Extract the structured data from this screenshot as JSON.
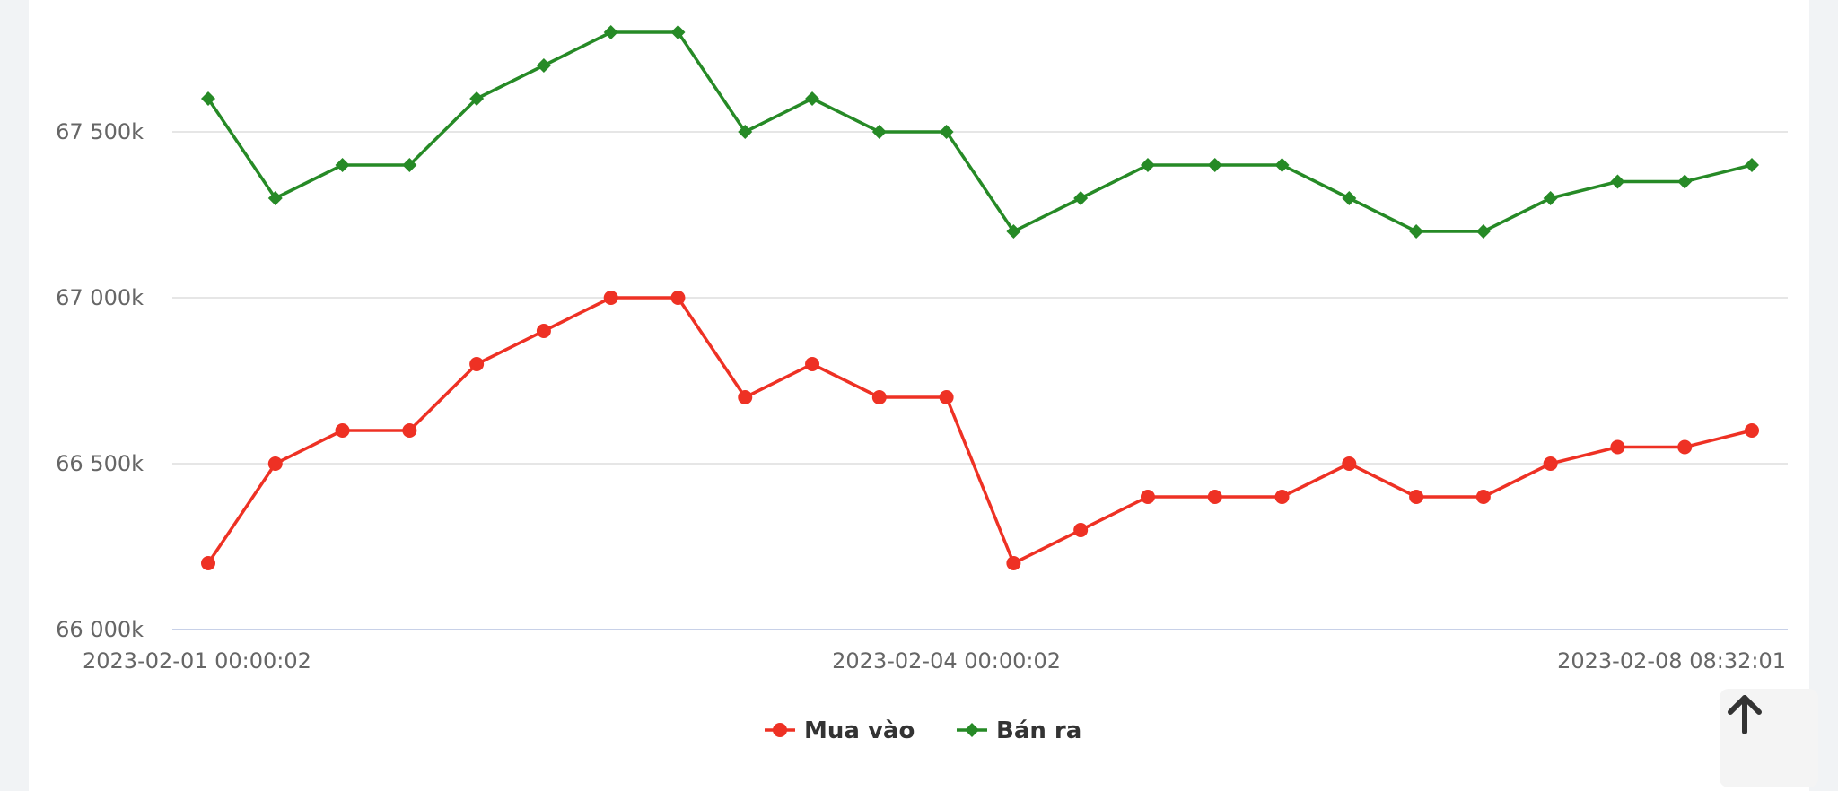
{
  "chart_data": {
    "type": "line",
    "title": "",
    "xlabel": "",
    "ylabel": "",
    "ylim": [
      66000,
      68000
    ],
    "y_ticks": [
      {
        "value": 66000,
        "label": "66 000k"
      },
      {
        "value": 66500,
        "label": "66 500k"
      },
      {
        "value": 67000,
        "label": "67 000k"
      },
      {
        "value": 67500,
        "label": "67 500k"
      }
    ],
    "x_tick_labels": [
      {
        "index": 0,
        "label": "2023-02-01 00:00:02"
      },
      {
        "index": 11,
        "label": "2023-02-04 00:00:02"
      },
      {
        "index": 23,
        "label": "2023-02-08 08:32:01"
      }
    ],
    "grid": true,
    "legend_position": "bottom",
    "series": [
      {
        "name": "Mua vào",
        "color": "#ee3124",
        "marker": "circle",
        "values": [
          66200,
          66500,
          66600,
          66600,
          66800,
          66900,
          67000,
          67000,
          66700,
          66800,
          66700,
          66700,
          66200,
          66300,
          66400,
          66400,
          66400,
          66500,
          66400,
          66400,
          66500,
          66550,
          66550,
          66600
        ]
      },
      {
        "name": "Bán ra",
        "color": "#268a26",
        "marker": "diamond",
        "values": [
          67600,
          67300,
          67400,
          67400,
          67600,
          67700,
          67800,
          67800,
          67500,
          67600,
          67500,
          67500,
          67200,
          67300,
          67400,
          67400,
          67400,
          67300,
          67200,
          67200,
          67300,
          67350,
          67350,
          67400
        ]
      }
    ]
  },
  "controls": {
    "scroll_top_icon": "arrow-up-icon"
  }
}
